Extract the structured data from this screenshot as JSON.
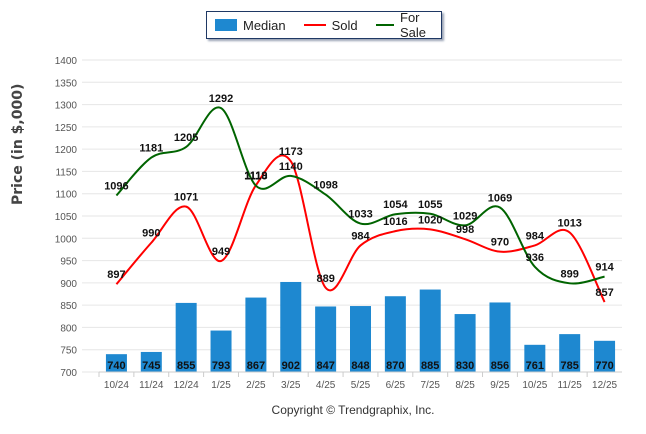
{
  "chart_data": {
    "type": "bar",
    "title": "",
    "xlabel": "",
    "ylabel": "Price (in $,000)",
    "ylim": [
      700,
      1400
    ],
    "yticks": [
      700,
      750,
      800,
      850,
      900,
      950,
      1000,
      1050,
      1100,
      1150,
      1200,
      1250,
      1300,
      1350,
      1400
    ],
    "grid": true,
    "legend_position": "top-center",
    "categories": [
      "10/24",
      "11/24",
      "12/24",
      "1/25",
      "2/25",
      "3/25",
      "4/25",
      "5/25",
      "6/25",
      "7/25",
      "8/25",
      "9/25",
      "10/25",
      "11/25",
      "12/25"
    ],
    "series": [
      {
        "name": "Median",
        "type": "bar",
        "color": "#1e88d0",
        "values": [
          740,
          745,
          855,
          793,
          867,
          902,
          847,
          848,
          870,
          885,
          830,
          856,
          761,
          785,
          770
        ]
      },
      {
        "name": "Sold",
        "type": "line",
        "color": "#ff0000",
        "values": [
          897,
          990,
          1071,
          949,
          1119,
          1173,
          889,
          984,
          1016,
          1020,
          998,
          970,
          984,
          1013,
          857
        ]
      },
      {
        "name": "For Sale",
        "type": "line",
        "color": "#006400",
        "values": [
          1096,
          1181,
          1205,
          1292,
          1118,
          1140,
          1098,
          1033,
          1054,
          1055,
          1029,
          1069,
          936,
          899,
          914
        ]
      }
    ]
  },
  "legend": {
    "items": [
      {
        "label": "Median",
        "color": "#1e88d0"
      },
      {
        "label": "Sold",
        "color": "#ff0000"
      },
      {
        "label": "For Sale",
        "color": "#006400"
      }
    ]
  },
  "footer": {
    "copyright": "Copyright © Trendgraphix, Inc."
  }
}
